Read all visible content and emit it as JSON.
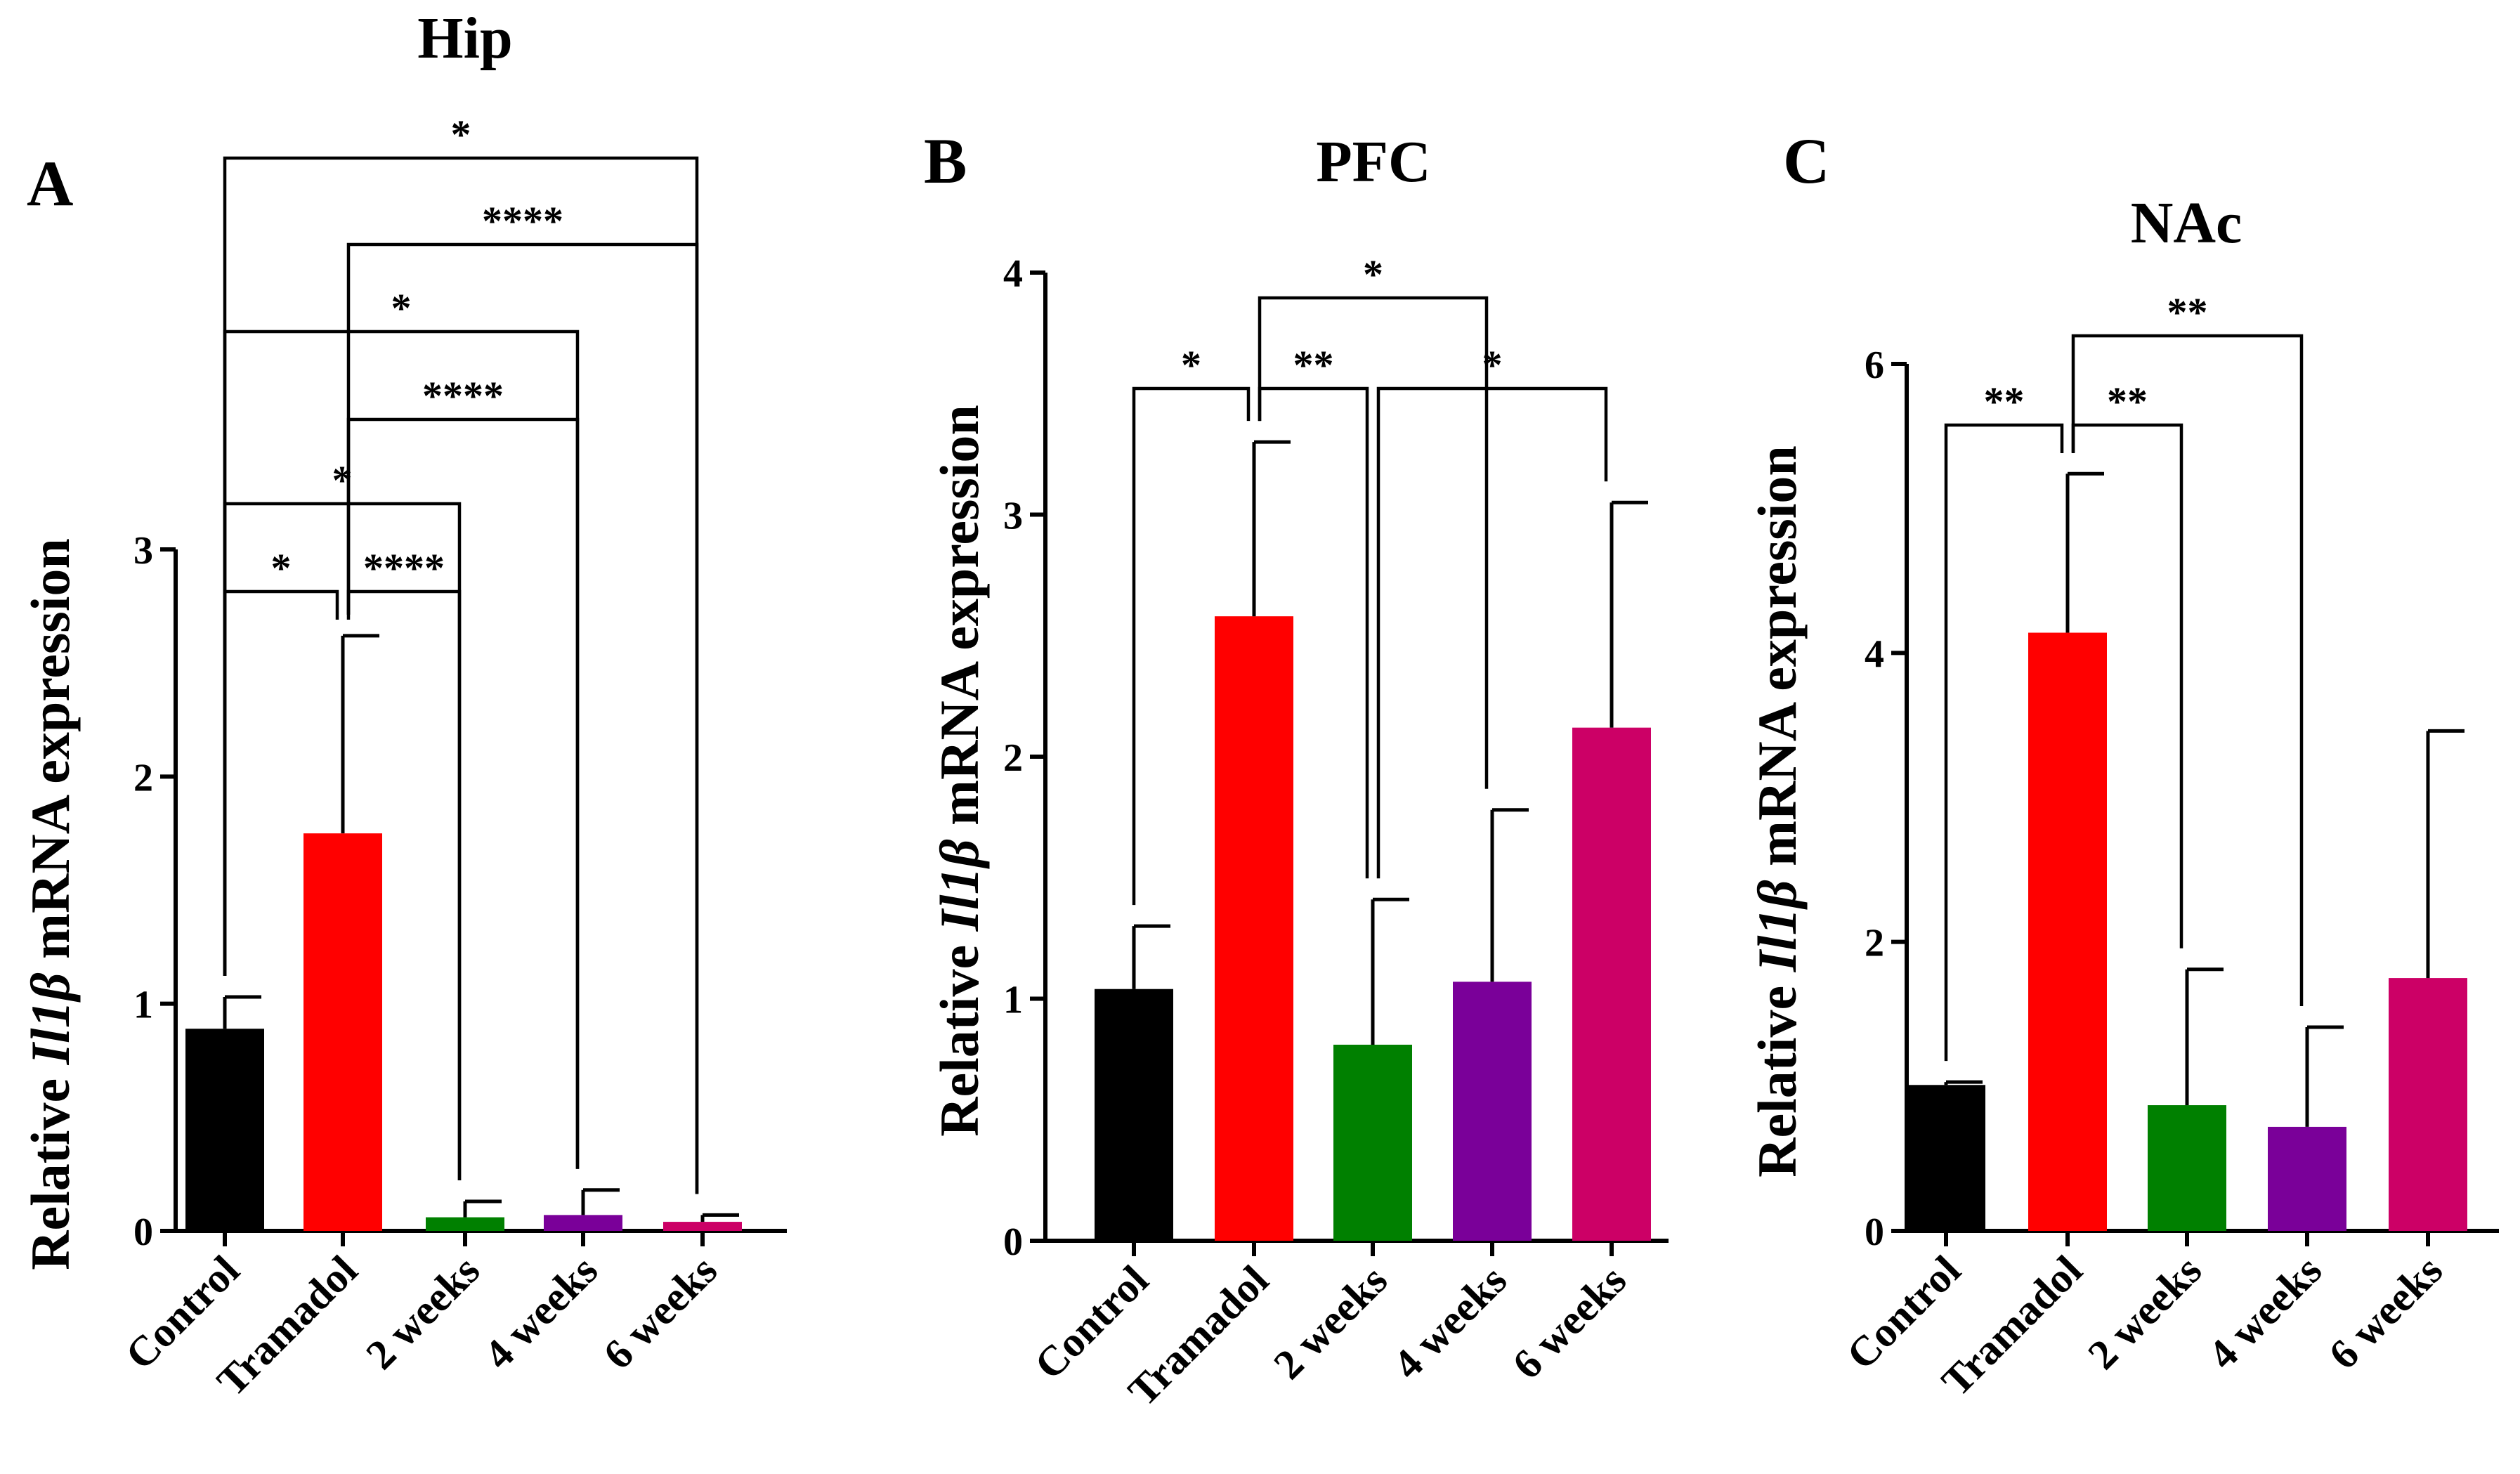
{
  "figure": {
    "description_text": "Relative Il1b expression bar charts",
    "ylabel_parts": {
      "prefix": "Relative ",
      "gene": "Il1β",
      "suffix": " mRNA expression"
    }
  },
  "chart_data": [
    {
      "type": "bar",
      "panel": "A",
      "title": "Hip",
      "ylabel": "Relative Il1β mRNA expression",
      "categories": [
        "Control",
        "Tramadol",
        "2 weeks",
        "4 weeks",
        "6 weeks"
      ],
      "values": [
        0.89,
        1.75,
        0.06,
        0.07,
        0.04
      ],
      "errors": [
        0.14,
        0.87,
        0.07,
        0.11,
        0.03
      ],
      "colors": [
        "#000000",
        "#ff0000",
        "#008000",
        "#7a0099",
        "#cc0066"
      ],
      "ylim": [
        0,
        3
      ],
      "yticks": [
        0,
        1,
        2,
        3
      ],
      "significance": [
        {
          "from": 0,
          "to": 1,
          "label": "*",
          "level": 0
        },
        {
          "from": 1,
          "to": 2,
          "label": "****",
          "level": 0
        },
        {
          "from": 0,
          "to": 2,
          "label": "*",
          "level": 1
        },
        {
          "from": 1,
          "to": 3,
          "label": "****",
          "level": 2
        },
        {
          "from": 0,
          "to": 3,
          "label": "*",
          "level": 3
        },
        {
          "from": 1,
          "to": 4,
          "label": "****",
          "level": 4
        },
        {
          "from": 0,
          "to": 4,
          "label": "*",
          "level": 5
        }
      ]
    },
    {
      "type": "bar",
      "panel": "B",
      "title": "PFC",
      "ylabel": "Relative Il1β mRNA expression",
      "categories": [
        "Control",
        "Tramadol",
        "2 weeks",
        "4 weeks",
        "6 weeks"
      ],
      "values": [
        1.04,
        2.58,
        0.81,
        1.07,
        2.12
      ],
      "errors": [
        0.26,
        0.72,
        0.6,
        0.71,
        0.93
      ],
      "colors": [
        "#000000",
        "#ff0000",
        "#008000",
        "#7a0099",
        "#cc0066"
      ],
      "ylim": [
        0,
        4
      ],
      "yticks": [
        0,
        1,
        2,
        3,
        4
      ],
      "significance": [
        {
          "from": 0,
          "to": 1,
          "label": "*",
          "level": 0
        },
        {
          "from": 1,
          "to": 2,
          "label": "**",
          "level": 0
        },
        {
          "from": 2,
          "to": 4,
          "label": "*",
          "level": 0
        },
        {
          "from": 1,
          "to": 3,
          "label": "*",
          "level": 1
        }
      ]
    },
    {
      "type": "bar",
      "panel": "C",
      "title": "NAc",
      "ylabel": "Relative Il1β mRNA expression",
      "categories": [
        "Control",
        "Tramadol",
        "2 weeks",
        "4 weeks",
        "6 weeks"
      ],
      "values": [
        1.01,
        4.14,
        0.87,
        0.72,
        1.75
      ],
      "errors": [
        0.02,
        1.1,
        0.94,
        0.69,
        1.71
      ],
      "colors": [
        "#000000",
        "#ff0000",
        "#008000",
        "#7a0099",
        "#cc0066"
      ],
      "ylim": [
        0,
        6
      ],
      "yticks": [
        0,
        2,
        4,
        6
      ],
      "significance": [
        {
          "from": 0,
          "to": 1,
          "label": "**",
          "level": 0
        },
        {
          "from": 1,
          "to": 2,
          "label": "**",
          "level": 0
        },
        {
          "from": 1,
          "to": 3,
          "label": "**",
          "level": 1
        }
      ]
    }
  ]
}
